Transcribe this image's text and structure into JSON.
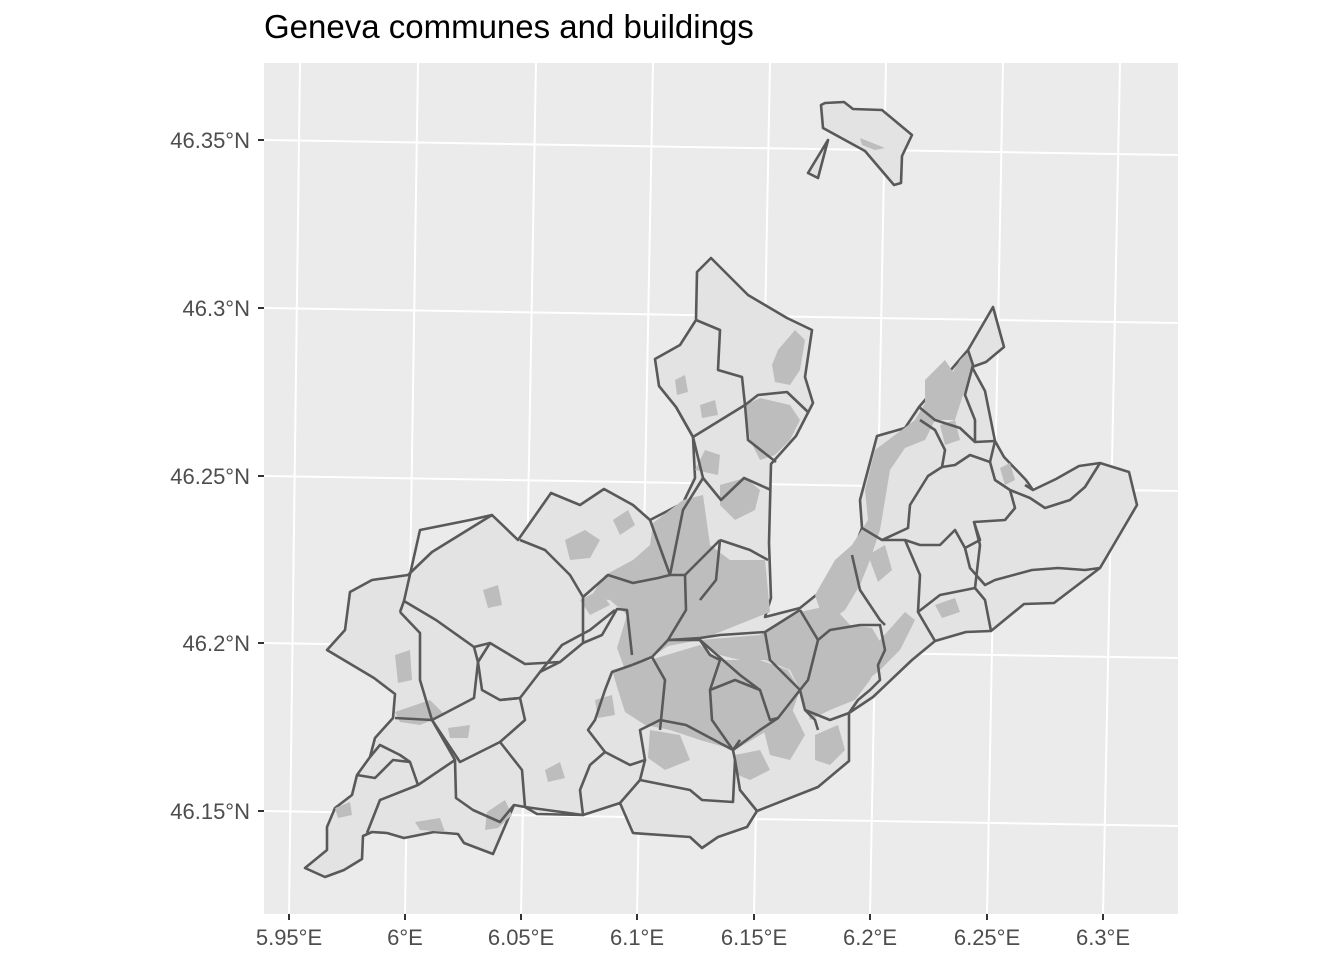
{
  "title": "Geneva communes and buildings",
  "colors": {
    "panel": "#ebebeb",
    "graticule": "#ffffff",
    "commune_fill": "#e3e3e3",
    "commune_border": "#595959",
    "buildings": "#bdbdbd",
    "axis_text": "#4d4d4d"
  },
  "axes": {
    "x_labels": [
      "5.95°E",
      "6°E",
      "6.05°E",
      "6.1°E",
      "6.15°E",
      "6.2°E",
      "6.25°E",
      "6.3°E"
    ],
    "y_labels": [
      "46.35°N",
      "46.3°N",
      "46.25°N",
      "46.2°N",
      "46.15°N"
    ]
  },
  "map": {
    "layers": [
      "communes",
      "buildings"
    ],
    "panel_background": "grey",
    "graticule": true
  }
}
